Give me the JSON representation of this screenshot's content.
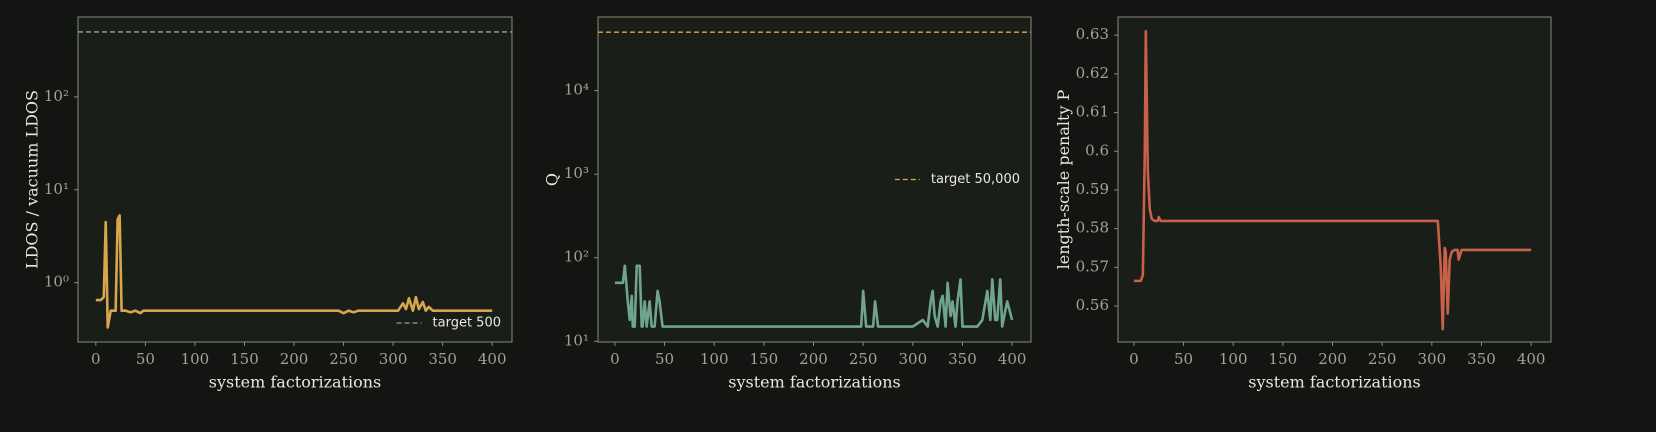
{
  "chart_data": [
    {
      "type": "line",
      "x_label": "system factorizations",
      "y_label": "LDOS / vacuum LDOS",
      "log_y": true,
      "xlim": [
        -18,
        420
      ],
      "ylim": [
        0.23,
        724
      ],
      "xticks": [
        0,
        50,
        100,
        150,
        200,
        250,
        300,
        350,
        400
      ],
      "yticks": [
        {
          "value": 1,
          "label": "10⁰"
        },
        {
          "value": 10,
          "label": "10¹"
        },
        {
          "value": 100,
          "label": "10²"
        }
      ],
      "x": [
        0,
        5,
        8,
        10,
        12,
        15,
        20,
        22,
        24,
        26,
        30,
        35,
        40,
        45,
        48,
        50,
        100,
        200,
        245,
        250,
        255,
        260,
        265,
        300,
        305,
        310,
        313,
        316,
        320,
        323,
        326,
        330,
        333,
        336,
        340,
        350,
        400
      ],
      "series": [
        {
          "color": "#d9a64e",
          "values": [
            0.65,
            0.65,
            0.7,
            4.5,
            0.33,
            0.5,
            0.5,
            4.8,
            5.3,
            0.5,
            0.5,
            0.48,
            0.5,
            0.47,
            0.5,
            0.5,
            0.5,
            0.5,
            0.5,
            0.47,
            0.5,
            0.48,
            0.5,
            0.5,
            0.5,
            0.6,
            0.52,
            0.68,
            0.5,
            0.7,
            0.52,
            0.62,
            0.5,
            0.55,
            0.5,
            0.5,
            0.5
          ]
        }
      ],
      "reference_line": {
        "name": "target 500",
        "value": 500,
        "color": "#7fa898"
      },
      "legend": "lower right"
    },
    {
      "type": "line",
      "x_label": "system factorizations",
      "y_label": "Q",
      "log_y": true,
      "xlim": [
        -17,
        419
      ],
      "ylim": [
        9.8,
        76000
      ],
      "xticks": [
        0,
        50,
        100,
        150,
        200,
        250,
        300,
        350,
        400
      ],
      "yticks": [
        {
          "value": 10,
          "label": "10¹"
        },
        {
          "value": 100,
          "label": "10²"
        },
        {
          "value": 1000,
          "label": "10³"
        },
        {
          "value": 10000,
          "label": "10⁴"
        }
      ],
      "x": [
        0,
        5,
        8,
        10,
        13,
        15,
        17,
        18,
        20,
        22,
        25,
        27,
        28,
        30,
        32,
        35,
        37,
        40,
        43,
        45,
        48,
        50,
        100,
        200,
        248,
        250,
        253,
        260,
        262,
        265,
        300,
        310,
        315,
        318,
        320,
        322,
        325,
        328,
        330,
        333,
        335,
        338,
        340,
        343,
        345,
        348,
        350,
        355,
        360,
        365,
        370,
        375,
        378,
        380,
        383,
        385,
        388,
        390,
        395,
        400
      ],
      "series": [
        {
          "color": "#6fa58c",
          "values": [
            50,
            50,
            50,
            80,
            30,
            18,
            35,
            15,
            15,
            80,
            80,
            15,
            15,
            30,
            15,
            30,
            15,
            15,
            40,
            30,
            15,
            15,
            15,
            15,
            15,
            40,
            15,
            15,
            30,
            15,
            15,
            18,
            15,
            30,
            40,
            20,
            15,
            30,
            35,
            15,
            50,
            20,
            30,
            15,
            30,
            55,
            15,
            15,
            15,
            15,
            18,
            40,
            18,
            55,
            18,
            18,
            55,
            15,
            30,
            18
          ]
        }
      ],
      "reference_line": {
        "name": "target 50,000",
        "value": 50000,
        "color": "#d9a64e"
      },
      "legend": "center right"
    },
    {
      "type": "line",
      "x_label": "system factorizations",
      "y_label": "length-scale penalty P",
      "log_y": false,
      "xlim": [
        -16,
        420
      ],
      "ylim": [
        0.5507,
        0.6347
      ],
      "xticks": [
        0,
        50,
        100,
        150,
        200,
        250,
        300,
        350,
        400
      ],
      "yticks": [
        0.56,
        0.57,
        0.58,
        0.59,
        0.6,
        0.61,
        0.62,
        0.63
      ],
      "x": [
        0,
        7,
        9,
        11,
        12,
        14,
        16,
        18,
        21,
        24,
        25,
        27,
        100,
        200,
        306,
        309,
        311,
        313,
        314,
        316,
        318,
        320,
        323,
        326,
        327,
        330,
        400
      ],
      "series": [
        {
          "color": "#c8604a",
          "values": [
            0.5665,
            0.5665,
            0.568,
            0.6,
            0.631,
            0.595,
            0.585,
            0.5825,
            0.582,
            0.582,
            0.583,
            0.582,
            0.582,
            0.582,
            0.582,
            0.57,
            0.554,
            0.575,
            0.574,
            0.558,
            0.572,
            0.574,
            0.5745,
            0.5745,
            0.572,
            0.5745,
            0.5745
          ]
        }
      ]
    }
  ]
}
